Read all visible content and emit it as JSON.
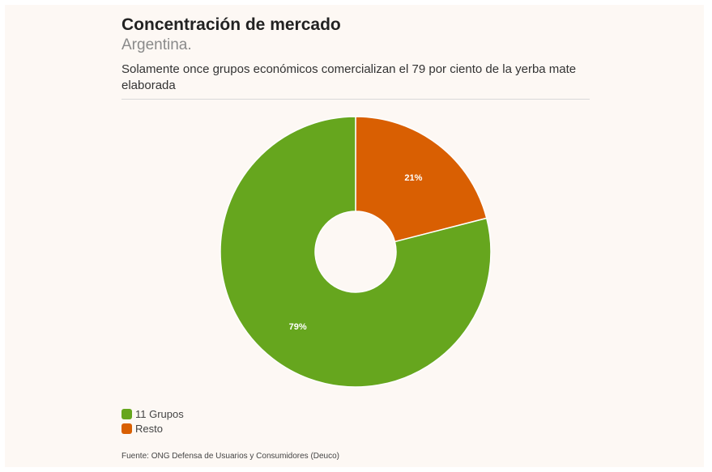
{
  "chart_data": {
    "type": "pie",
    "title": "Concentración de mercado",
    "subtitle": "Argentina.",
    "description": "Solamente once grupos económicos comercializan el 79 por ciento de la yerba mate elaborada",
    "slices": [
      {
        "label": "Resto",
        "value": 21,
        "data_label": "21%",
        "color": "#d95f02"
      },
      {
        "label": "11 Grupos",
        "value": 79,
        "data_label": "79%",
        "color": "#66a61e"
      }
    ],
    "legend_position": "bottom-left",
    "donut": true,
    "source": "Fuente: ONG Defensa de Usuarios y Consumidores (Deuco)"
  }
}
